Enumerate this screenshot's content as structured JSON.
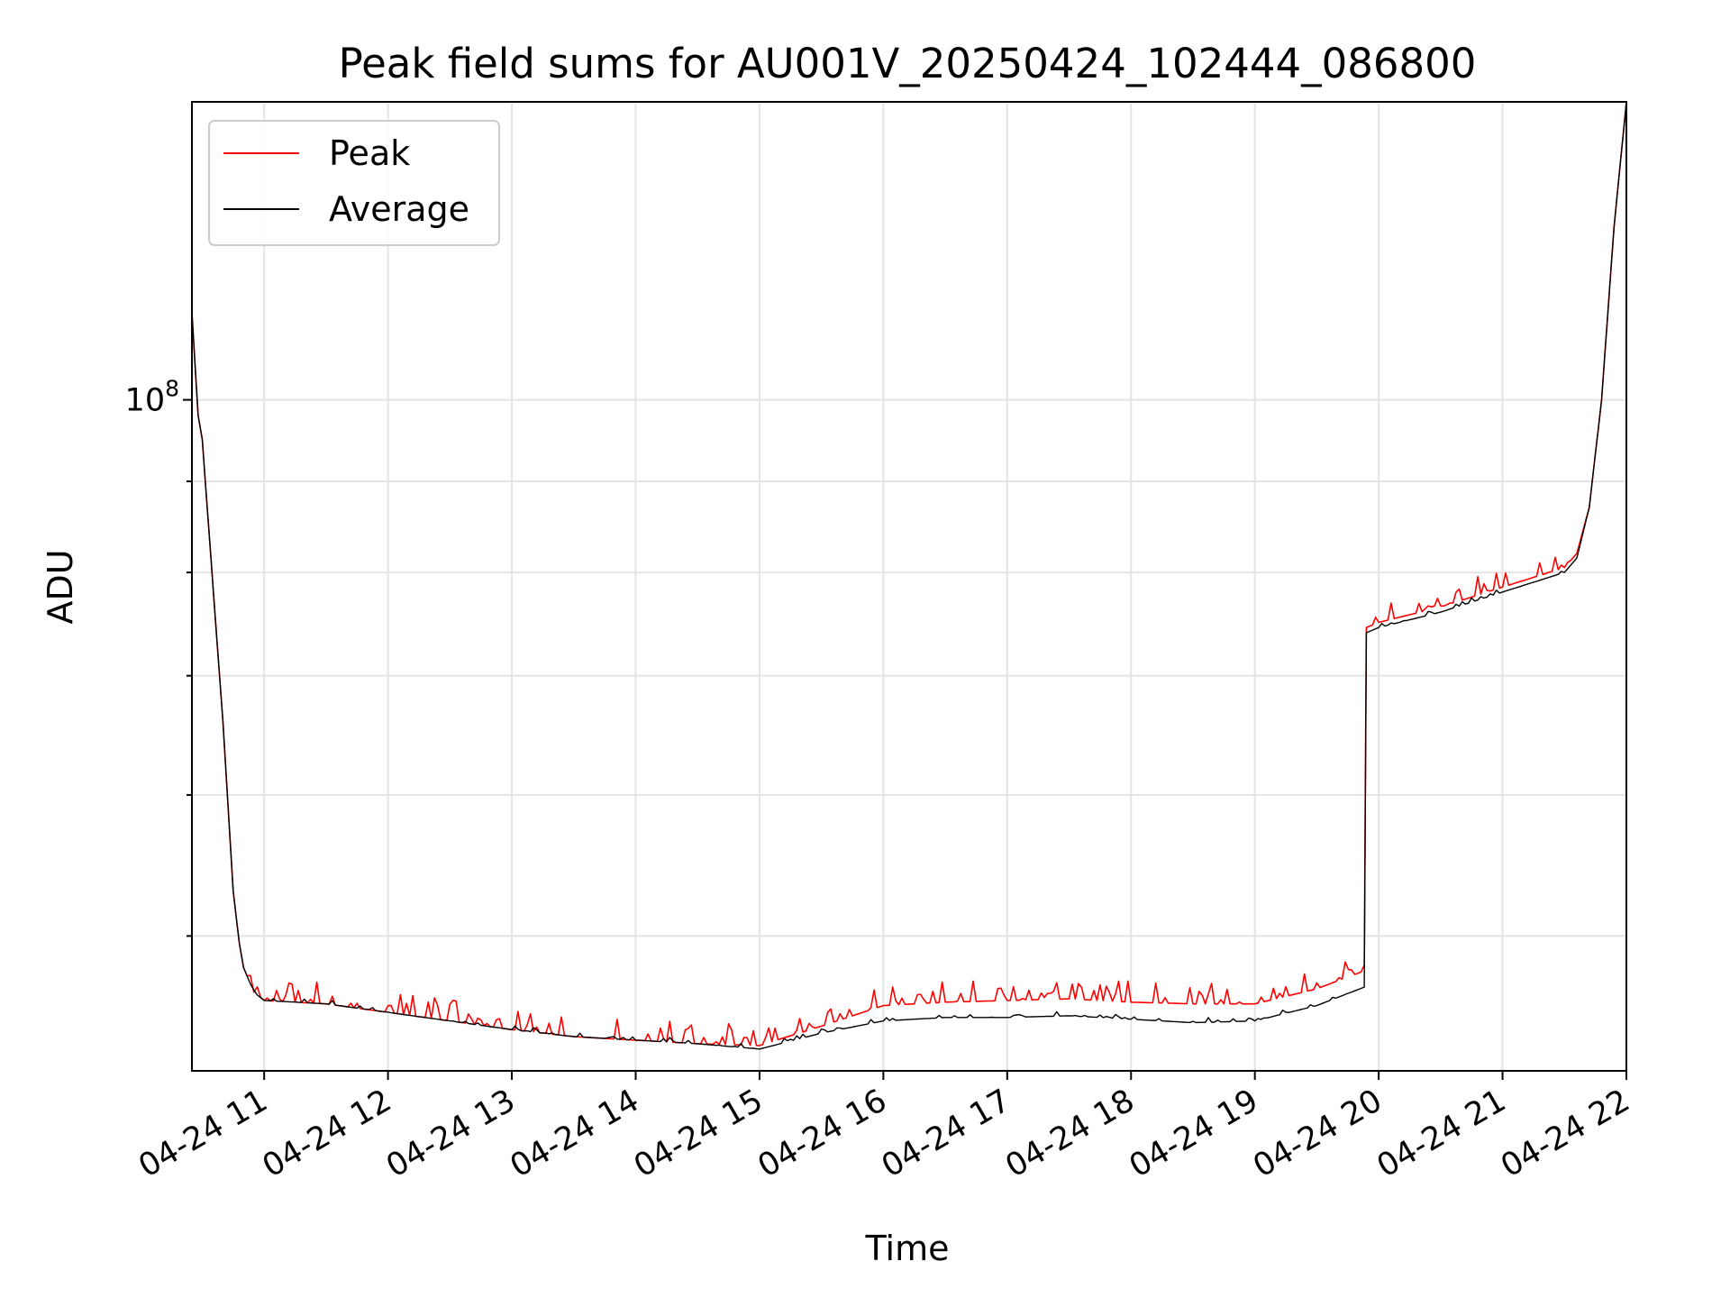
{
  "chart_data": {
    "type": "line",
    "title": "Peak field sums for AU001V_20250424_102444_086800",
    "xlabel": "Time",
    "ylabel": "ADU",
    "yscale": "log",
    "ylim": [
      42000000,
      147000000
    ],
    "xlim": [
      "04-24 10:25",
      "04-24 22:00"
    ],
    "x_ticks": [
      "04-24 11",
      "04-24 12",
      "04-24 13",
      "04-24 14",
      "04-24 15",
      "04-24 16",
      "04-24 17",
      "04-24 18",
      "04-24 19",
      "04-24 20",
      "04-24 21",
      "04-24 22"
    ],
    "y_ticks": [
      {
        "value": 100000000,
        "base": "10",
        "exp": "8"
      }
    ],
    "grid": true,
    "legend": {
      "position": "top-left"
    },
    "series": [
      {
        "name": "Peak",
        "color": "#ff0000",
        "x": [
          "04-24 10:25",
          "04-24 10:28",
          "04-24 10:30",
          "04-24 10:40",
          "04-24 10:45",
          "04-24 10:48",
          "04-24 10:50",
          "04-24 10:55",
          "04-24 11:00",
          "04-24 11:30",
          "04-24 12:00",
          "04-24 12:30",
          "04-24 13:00",
          "04-24 13:30",
          "04-24 14:00",
          "04-24 14:30",
          "04-24 15:00",
          "04-24 15:30",
          "04-24 16:00",
          "04-24 16:30",
          "04-24 17:00",
          "04-24 17:30",
          "04-24 18:00",
          "04-24 18:30",
          "04-24 19:00",
          "04-24 19:30",
          "04-24 19:53",
          "04-24 19:54",
          "04-24 20:00",
          "04-24 20:30",
          "04-24 21:00",
          "04-24 21:30",
          "04-24 21:36",
          "04-24 21:42",
          "04-24 21:48",
          "04-24 21:54",
          "04-24 22:00"
        ],
        "y": [
          112000000,
          98000000,
          95000000,
          66000000,
          53000000,
          49500000,
          48000000,
          46500000,
          46000000,
          45800000,
          45300000,
          44800000,
          44300000,
          43900000,
          43700000,
          43500000,
          43400000,
          44500000,
          45700000,
          45900000,
          46000000,
          46100000,
          45900000,
          45800000,
          45800000,
          46700000,
          47800000,
          74500000,
          75000000,
          76500000,
          78500000,
          80500000,
          82000000,
          87000000,
          100000000,
          125000000,
          147000000
        ]
      },
      {
        "name": "Average",
        "color": "#000000",
        "x": [
          "04-24 10:25",
          "04-24 10:28",
          "04-24 10:30",
          "04-24 10:40",
          "04-24 10:45",
          "04-24 10:48",
          "04-24 10:50",
          "04-24 10:55",
          "04-24 11:00",
          "04-24 11:30",
          "04-24 12:00",
          "04-24 12:30",
          "04-24 13:00",
          "04-24 13:30",
          "04-24 14:00",
          "04-24 14:30",
          "04-24 15:00",
          "04-24 15:30",
          "04-24 16:00",
          "04-24 16:30",
          "04-24 17:00",
          "04-24 17:30",
          "04-24 18:00",
          "04-24 18:30",
          "04-24 19:00",
          "04-24 19:30",
          "04-24 19:53",
          "04-24 19:54",
          "04-24 20:00",
          "04-24 20:30",
          "04-24 21:00",
          "04-24 21:30",
          "04-24 21:36",
          "04-24 21:42",
          "04-24 21:48",
          "04-24 21:54",
          "04-24 22:00"
        ],
        "y": [
          112000000,
          98000000,
          95000000,
          66000000,
          53000000,
          49500000,
          48000000,
          46500000,
          46000000,
          45800000,
          45300000,
          44800000,
          44300000,
          43900000,
          43700000,
          43500000,
          43200000,
          44100000,
          44800000,
          45000000,
          45000000,
          45100000,
          44900000,
          44700000,
          44800000,
          45700000,
          46800000,
          74000000,
          74500000,
          76000000,
          78000000,
          80000000,
          81500000,
          87000000,
          100000000,
          125000000,
          147000000
        ]
      }
    ]
  }
}
